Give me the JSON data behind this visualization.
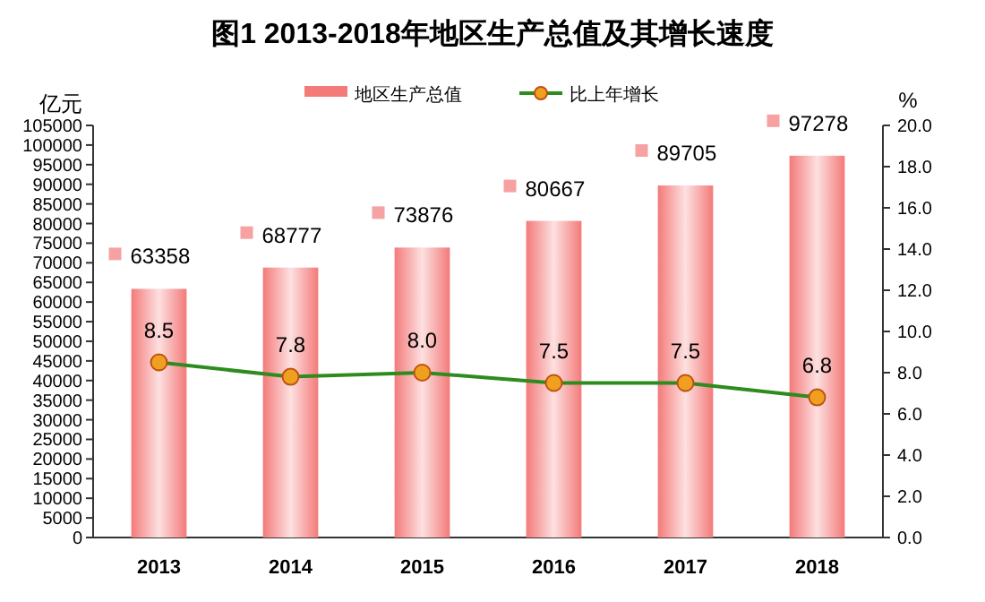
{
  "chart_data": {
    "type": "bar",
    "title": "图1 2013-2018年地区生产总值及其增长速度",
    "ylabel": "亿元",
    "y2label": "%",
    "categories": [
      "2013",
      "2014",
      "2015",
      "2016",
      "2017",
      "2018"
    ],
    "series": [
      {
        "name": "地区生产总值",
        "color": "#f47a7a",
        "values": [
          63358,
          68777,
          73876,
          80667,
          89705,
          97278
        ]
      },
      {
        "name": "比上年增长",
        "type": "line",
        "axis": "y2",
        "color": "#2e8b1e",
        "marker": "circle",
        "values": [
          8.5,
          7.8,
          8.0,
          7.5,
          7.5,
          6.8
        ],
        "value_labels": [
          "8.5",
          "7.8",
          "8.0",
          "7.5",
          "7.5",
          "6.8"
        ]
      }
    ],
    "ylim": [
      0,
      105000
    ],
    "yticks": [
      0,
      5000,
      10000,
      15000,
      20000,
      25000,
      30000,
      35000,
      40000,
      45000,
      50000,
      55000,
      60000,
      65000,
      70000,
      75000,
      80000,
      85000,
      90000,
      95000,
      100000,
      105000
    ],
    "y2lim": [
      0,
      20
    ],
    "y2ticks": [
      {
        "value": 0,
        "label": "0.0"
      },
      {
        "value": 2,
        "label": "2.0"
      },
      {
        "value": 4,
        "label": "4.0"
      },
      {
        "value": 6,
        "label": "6.0"
      },
      {
        "value": 8,
        "label": "8.0"
      },
      {
        "value": 10,
        "label": "10.0"
      },
      {
        "value": 12,
        "label": "12.0"
      },
      {
        "value": 14,
        "label": "14.0"
      },
      {
        "value": 16,
        "label": "16.0"
      },
      {
        "value": 18,
        "label": "18.0"
      },
      {
        "value": 20,
        "label": "20.0"
      }
    ],
    "legend": "top",
    "data_labels": true
  }
}
